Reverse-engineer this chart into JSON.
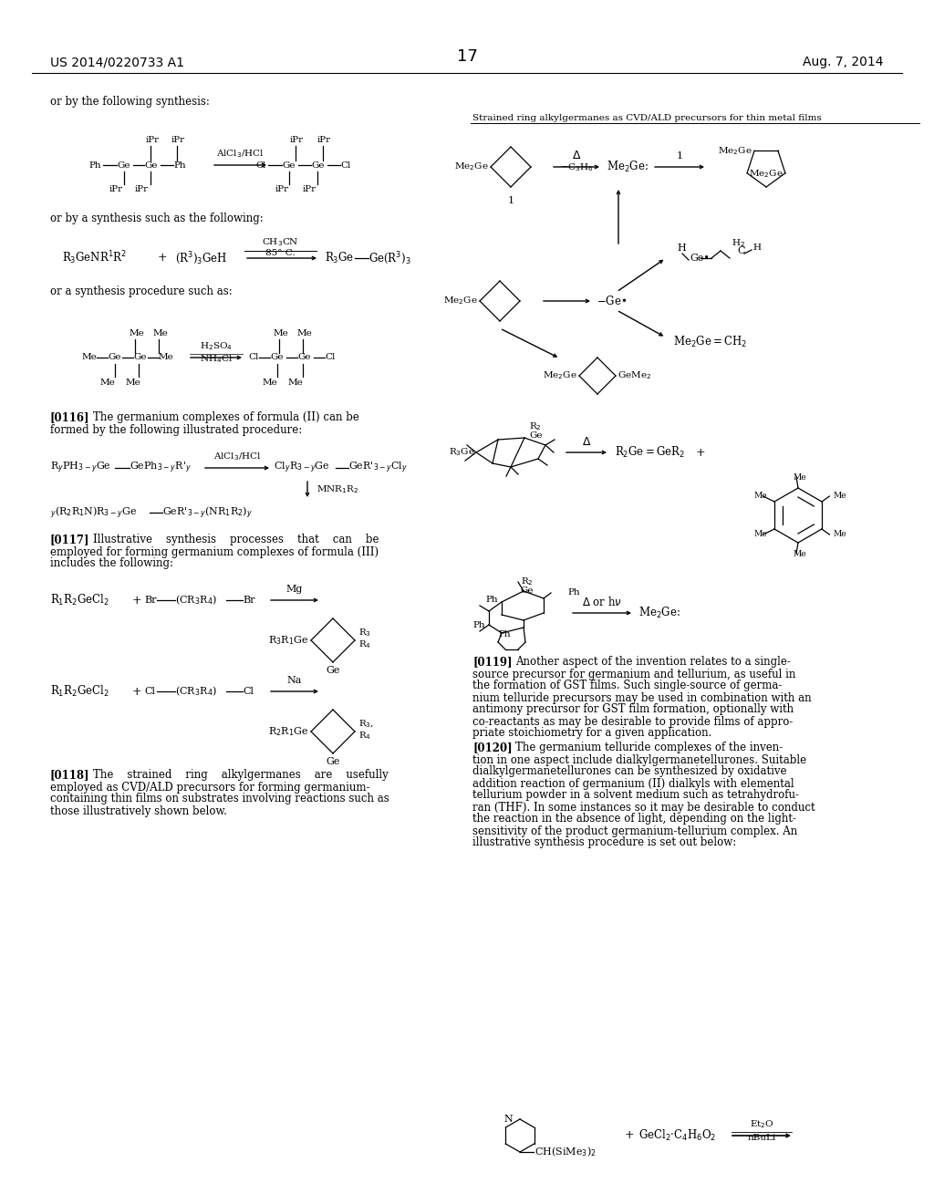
{
  "bg": "#ffffff",
  "header_left": "US 2014/0220733 A1",
  "header_right": "Aug. 7, 2014",
  "page_num": "17",
  "right_title": "Strained ring alkylgermanes as CVD/ALD precursors for thin metal films"
}
